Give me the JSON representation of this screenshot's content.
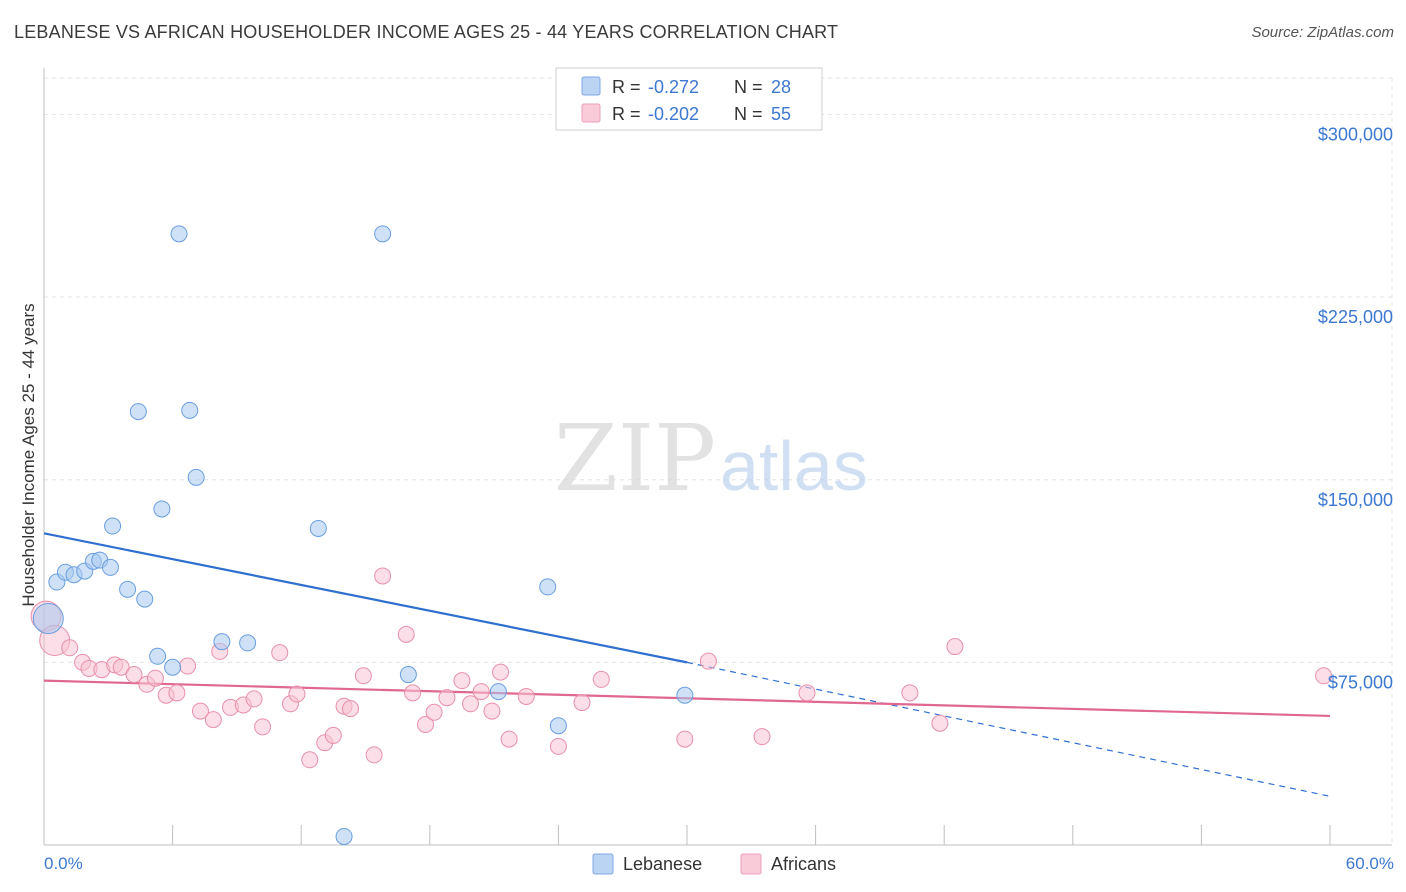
{
  "title": "LEBANESE VS AFRICAN HOUSEHOLDER INCOME AGES 25 - 44 YEARS CORRELATION CHART",
  "source": "Source: ZipAtlas.com",
  "watermark": {
    "zip": "ZIP",
    "atlas": "atlas"
  },
  "chart_data": {
    "type": "scatter",
    "xlabel": "",
    "ylabel": "Householder Income Ages 25 - 44 years",
    "xlim": [
      0,
      60
    ],
    "ylim": [
      0,
      315000
    ],
    "x_tick_labels": {
      "min": "0.0%",
      "max": "60.0%"
    },
    "y_ticks": [
      {
        "value": 75000,
        "label": "$75,000"
      },
      {
        "value": 150000,
        "label": "$150,000"
      },
      {
        "value": 225000,
        "label": "$225,000"
      },
      {
        "value": 300000,
        "label": "$300,000"
      }
    ],
    "legend": {
      "position": "top-center",
      "entries": [
        {
          "r_label": "R =",
          "r_value": "-0.272",
          "n_label": "N =",
          "n_value": "28"
        },
        {
          "r_label": "R =",
          "r_value": "-0.202",
          "n_label": "N =",
          "n_value": "55"
        }
      ]
    },
    "series": [
      {
        "name": "Lebanese",
        "color": "#a8c8f0",
        "stroke": "#6a9ee0",
        "line_color": "#2f6fd0",
        "trend": {
          "x0": 0,
          "y0": 128000,
          "x1": 30,
          "y1": 75000,
          "dash_to_x": 60,
          "dash_y": 20000
        },
        "points": [
          [
            0.2,
            93000
          ],
          [
            0.6,
            108000
          ],
          [
            1.0,
            112000
          ],
          [
            1.4,
            111000
          ],
          [
            1.9,
            112500
          ],
          [
            2.3,
            116500
          ],
          [
            2.6,
            117000
          ],
          [
            3.1,
            114000
          ],
          [
            3.2,
            131000
          ],
          [
            3.9,
            105000
          ],
          [
            4.4,
            178000
          ],
          [
            4.7,
            101000
          ],
          [
            5.3,
            77500
          ],
          [
            5.5,
            138000
          ],
          [
            6.0,
            73000
          ],
          [
            6.3,
            251000
          ],
          [
            6.8,
            178500
          ],
          [
            7.1,
            151000
          ],
          [
            8.3,
            83500
          ],
          [
            9.5,
            83000
          ],
          [
            12.8,
            130000
          ],
          [
            14.0,
            3500
          ],
          [
            15.8,
            251000
          ],
          [
            17.0,
            70000
          ],
          [
            21.2,
            63000
          ],
          [
            23.5,
            106000
          ],
          [
            24.0,
            49000
          ],
          [
            29.9,
            61500
          ]
        ]
      },
      {
        "name": "Africans",
        "color": "#f8c3d3",
        "stroke": "#e890aa",
        "line_color": "#e06890",
        "trend": {
          "x0": 0,
          "y0": 67500,
          "x1": 60,
          "y1": 53000
        },
        "points": [
          [
            0.1,
            94000
          ],
          [
            0.5,
            84000
          ],
          [
            1.2,
            81000
          ],
          [
            1.8,
            75000
          ],
          [
            2.1,
            72500
          ],
          [
            2.7,
            72000
          ],
          [
            3.3,
            74000
          ],
          [
            3.6,
            73000
          ],
          [
            4.2,
            70000
          ],
          [
            4.8,
            66000
          ],
          [
            5.2,
            68500
          ],
          [
            5.7,
            61500
          ],
          [
            6.2,
            62500
          ],
          [
            6.7,
            73500
          ],
          [
            7.3,
            55000
          ],
          [
            7.9,
            51500
          ],
          [
            8.2,
            79500
          ],
          [
            8.7,
            56500
          ],
          [
            9.3,
            57500
          ],
          [
            9.8,
            60000
          ],
          [
            10.2,
            48500
          ],
          [
            11.0,
            79000
          ],
          [
            11.5,
            58000
          ],
          [
            11.8,
            62000
          ],
          [
            12.4,
            35000
          ],
          [
            13.1,
            42000
          ],
          [
            13.5,
            45000
          ],
          [
            14.0,
            57000
          ],
          [
            14.3,
            56000
          ],
          [
            14.9,
            69500
          ],
          [
            15.4,
            37000
          ],
          [
            15.8,
            110500
          ],
          [
            16.9,
            86500
          ],
          [
            17.2,
            62500
          ],
          [
            17.8,
            49500
          ],
          [
            18.2,
            54500
          ],
          [
            18.8,
            60500
          ],
          [
            19.5,
            67500
          ],
          [
            19.9,
            58000
          ],
          [
            20.4,
            63000
          ],
          [
            20.9,
            55000
          ],
          [
            21.3,
            71000
          ],
          [
            21.7,
            43500
          ],
          [
            22.5,
            61000
          ],
          [
            24.0,
            40500
          ],
          [
            25.1,
            58500
          ],
          [
            26.0,
            68000
          ],
          [
            29.9,
            43500
          ],
          [
            31.0,
            75500
          ],
          [
            33.5,
            44500
          ],
          [
            35.6,
            62500
          ],
          [
            40.4,
            62500
          ],
          [
            41.8,
            50000
          ],
          [
            42.5,
            81500
          ],
          [
            59.7,
            69500
          ]
        ]
      }
    ]
  }
}
